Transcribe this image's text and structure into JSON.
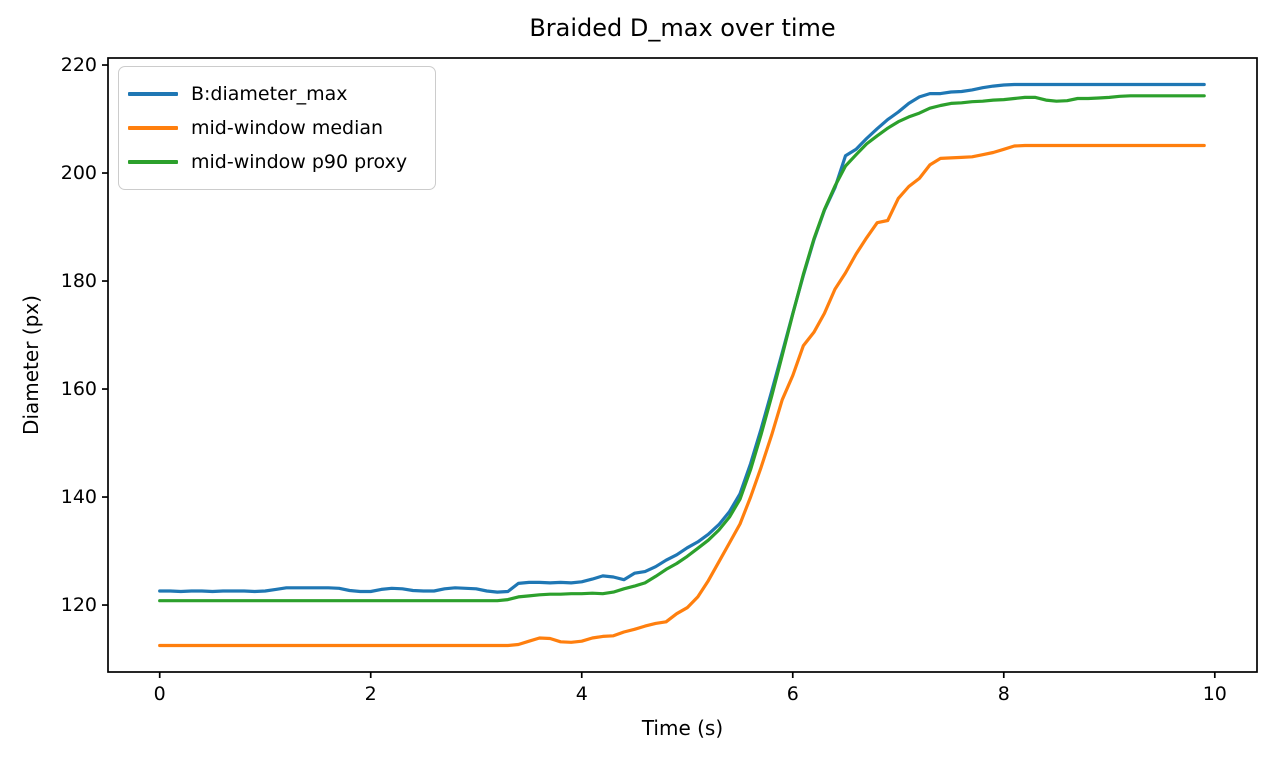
{
  "window": {
    "background": "#ffffff"
  },
  "chart_data": {
    "type": "line",
    "title": "Braided D_max over time",
    "xlabel": "Time (s)",
    "ylabel": "Diameter (px)",
    "xlim": [
      -0.49,
      10.4
    ],
    "ylim": [
      107.6,
      221.3
    ],
    "x_ticks": [
      0,
      2,
      4,
      6,
      8,
      10
    ],
    "y_ticks": [
      120,
      140,
      160,
      180,
      200,
      220
    ],
    "grid": false,
    "legend_position": "upper-left",
    "axis_color": "#000000",
    "x": {
      "start": 0.0,
      "step": 0.1,
      "count": 100
    },
    "series": [
      {
        "name": "B:diameter_max",
        "color": "#1f77b4",
        "values": [
          122.6,
          122.6,
          122.5,
          122.6,
          122.6,
          122.5,
          122.6,
          122.6,
          122.6,
          122.5,
          122.6,
          122.9,
          123.2,
          123.2,
          123.2,
          123.2,
          123.2,
          123.1,
          122.7,
          122.5,
          122.5,
          122.9,
          123.1,
          123.0,
          122.7,
          122.6,
          122.6,
          123.0,
          123.2,
          123.1,
          123.0,
          122.6,
          122.4,
          122.5,
          124.0,
          124.2,
          124.2,
          124.1,
          124.2,
          124.1,
          124.3,
          124.8,
          125.4,
          125.2,
          124.7,
          125.9,
          126.2,
          127.1,
          128.3,
          129.3,
          130.6,
          131.7,
          133.1,
          134.9,
          137.3,
          140.6,
          146.2,
          152.6,
          159.6,
          166.7,
          174.0,
          181.0,
          187.6,
          193.1,
          197.3,
          203.2,
          204.4,
          206.4,
          208.2,
          209.9,
          211.3,
          212.9,
          214.1,
          214.7,
          214.7,
          215.0,
          215.1,
          215.4,
          215.8,
          216.1,
          216.3,
          216.4,
          216.4,
          216.4,
          216.4,
          216.4,
          216.4,
          216.4,
          216.4,
          216.4,
          216.4,
          216.4,
          216.4,
          216.4,
          216.4,
          216.4,
          216.4,
          216.4,
          216.4,
          216.4
        ]
      },
      {
        "name": "mid-window median",
        "color": "#ff7f0e",
        "values": [
          112.5,
          112.5,
          112.5,
          112.5,
          112.5,
          112.5,
          112.5,
          112.5,
          112.5,
          112.5,
          112.5,
          112.5,
          112.5,
          112.5,
          112.5,
          112.5,
          112.5,
          112.5,
          112.5,
          112.5,
          112.5,
          112.5,
          112.5,
          112.5,
          112.5,
          112.5,
          112.5,
          112.5,
          112.5,
          112.5,
          112.5,
          112.5,
          112.5,
          112.5,
          112.7,
          113.3,
          113.9,
          113.8,
          113.2,
          113.1,
          113.3,
          113.9,
          114.2,
          114.3,
          115.0,
          115.5,
          116.1,
          116.6,
          116.9,
          118.4,
          119.5,
          121.5,
          124.5,
          128.0,
          131.5,
          135.0,
          140.0,
          145.5,
          151.5,
          158.0,
          162.5,
          168.0,
          170.5,
          174.0,
          178.5,
          181.5,
          185.0,
          188.0,
          190.8,
          191.2,
          195.3,
          197.5,
          199.0,
          201.5,
          202.7,
          202.8,
          202.9,
          203.0,
          203.4,
          203.8,
          204.4,
          205.0,
          205.1,
          205.1,
          205.1,
          205.1,
          205.1,
          205.1,
          205.1,
          205.1,
          205.1,
          205.1,
          205.1,
          205.1,
          205.1,
          205.1,
          205.1,
          205.1,
          205.1,
          205.1
        ]
      },
      {
        "name": "mid-window p90 proxy",
        "color": "#2ca02c",
        "values": [
          120.8,
          120.8,
          120.8,
          120.8,
          120.8,
          120.8,
          120.8,
          120.8,
          120.8,
          120.8,
          120.8,
          120.8,
          120.8,
          120.8,
          120.8,
          120.8,
          120.8,
          120.8,
          120.8,
          120.8,
          120.8,
          120.8,
          120.8,
          120.8,
          120.8,
          120.8,
          120.8,
          120.8,
          120.8,
          120.8,
          120.8,
          120.8,
          120.8,
          121.0,
          121.5,
          121.7,
          121.9,
          122.0,
          122.0,
          122.1,
          122.1,
          122.2,
          122.1,
          122.4,
          123.0,
          123.5,
          124.1,
          125.3,
          126.6,
          127.7,
          129.0,
          130.5,
          132.0,
          133.9,
          136.3,
          139.6,
          145.1,
          151.6,
          158.7,
          166.2,
          173.9,
          181.2,
          187.8,
          193.2,
          197.6,
          201.3,
          203.4,
          205.4,
          206.9,
          208.3,
          209.5,
          210.4,
          211.1,
          212.0,
          212.5,
          212.9,
          213.0,
          213.2,
          213.3,
          213.5,
          213.6,
          213.8,
          214.0,
          214.0,
          213.5,
          213.3,
          213.4,
          213.8,
          213.8,
          213.9,
          214.0,
          214.2,
          214.3,
          214.3,
          214.3,
          214.3,
          214.3,
          214.3,
          214.3,
          214.3
        ]
      }
    ]
  }
}
